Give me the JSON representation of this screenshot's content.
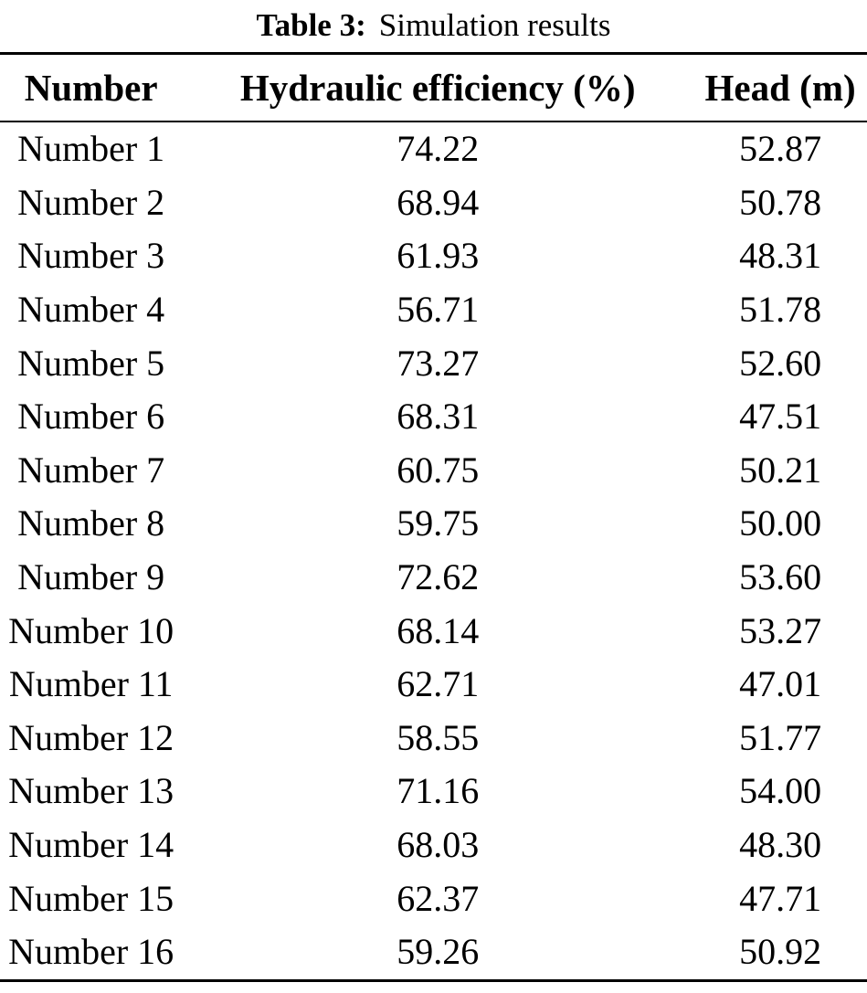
{
  "caption": {
    "label": "Table 3:",
    "text": "Simulation results"
  },
  "table": {
    "columns": [
      "Number",
      "Hydraulic efficiency (%)",
      "Head (m)"
    ],
    "rows": [
      {
        "number": "Number 1",
        "efficiency": "74.22",
        "head": "52.87"
      },
      {
        "number": "Number 2",
        "efficiency": "68.94",
        "head": "50.78"
      },
      {
        "number": "Number 3",
        "efficiency": "61.93",
        "head": "48.31"
      },
      {
        "number": "Number 4",
        "efficiency": "56.71",
        "head": "51.78"
      },
      {
        "number": "Number 5",
        "efficiency": "73.27",
        "head": "52.60"
      },
      {
        "number": "Number 6",
        "efficiency": "68.31",
        "head": "47.51"
      },
      {
        "number": "Number 7",
        "efficiency": "60.75",
        "head": "50.21"
      },
      {
        "number": "Number 8",
        "efficiency": "59.75",
        "head": "50.00"
      },
      {
        "number": "Number 9",
        "efficiency": "72.62",
        "head": "53.60"
      },
      {
        "number": "Number 10",
        "efficiency": "68.14",
        "head": "53.27"
      },
      {
        "number": "Number 11",
        "efficiency": "62.71",
        "head": "47.01"
      },
      {
        "number": "Number 12",
        "efficiency": "58.55",
        "head": "51.77"
      },
      {
        "number": "Number 13",
        "efficiency": "71.16",
        "head": "54.00"
      },
      {
        "number": "Number 14",
        "efficiency": "68.03",
        "head": "48.30"
      },
      {
        "number": "Number 15",
        "efficiency": "62.37",
        "head": "47.71"
      },
      {
        "number": "Number 16",
        "efficiency": "59.26",
        "head": "50.92"
      }
    ]
  }
}
